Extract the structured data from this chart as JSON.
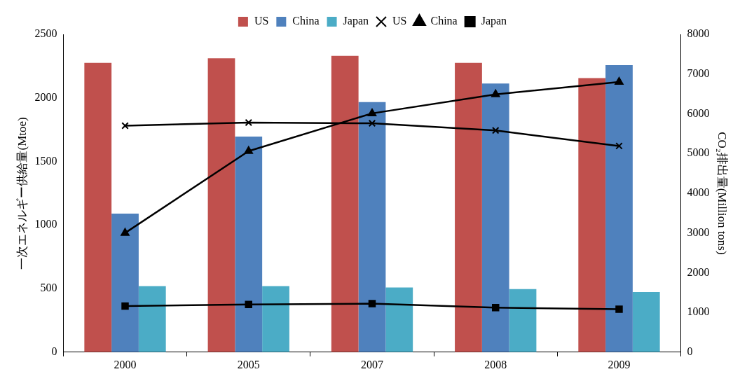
{
  "chart_data": {
    "type": "bar",
    "categories": [
      "2000",
      "2005",
      "2007",
      "2008",
      "2009"
    ],
    "ylabel": "一次エネルギー供給量(Mtoe)",
    "y2label": "CO₂排出量(Million tons)",
    "ylim": [
      0,
      2500
    ],
    "yticks": [
      0,
      500,
      1000,
      1500,
      2000,
      2500
    ],
    "y2lim": [
      0,
      8000
    ],
    "y2ticks": [
      0,
      1000,
      2000,
      3000,
      4000,
      5000,
      6000,
      7000,
      8000
    ],
    "grid": false,
    "legend": "top",
    "series": [
      {
        "name": "US",
        "type": "bar",
        "color": "#c0504d",
        "values": [
          2276,
          2312,
          2330,
          2276,
          2155
        ]
      },
      {
        "name": "China",
        "type": "bar",
        "color": "#4f81bd",
        "values": [
          1090,
          1695,
          1967,
          2113,
          2258
        ]
      },
      {
        "name": "Japan",
        "type": "bar",
        "color": "#4bacc6",
        "values": [
          520,
          520,
          508,
          496,
          472
        ]
      },
      {
        "name": "US",
        "type": "line",
        "axis": "y2",
        "marker": "cross",
        "color": "#000000",
        "values": [
          5700,
          5780,
          5760,
          5580,
          5190
        ]
      },
      {
        "name": "China",
        "type": "line",
        "axis": "y2",
        "marker": "triangle",
        "color": "#000000",
        "values": [
          3000,
          5060,
          6010,
          6490,
          6800
        ]
      },
      {
        "name": "Japan",
        "type": "line",
        "axis": "y2",
        "marker": "square",
        "color": "#000000",
        "values": [
          1160,
          1200,
          1220,
          1120,
          1080
        ]
      }
    ]
  }
}
